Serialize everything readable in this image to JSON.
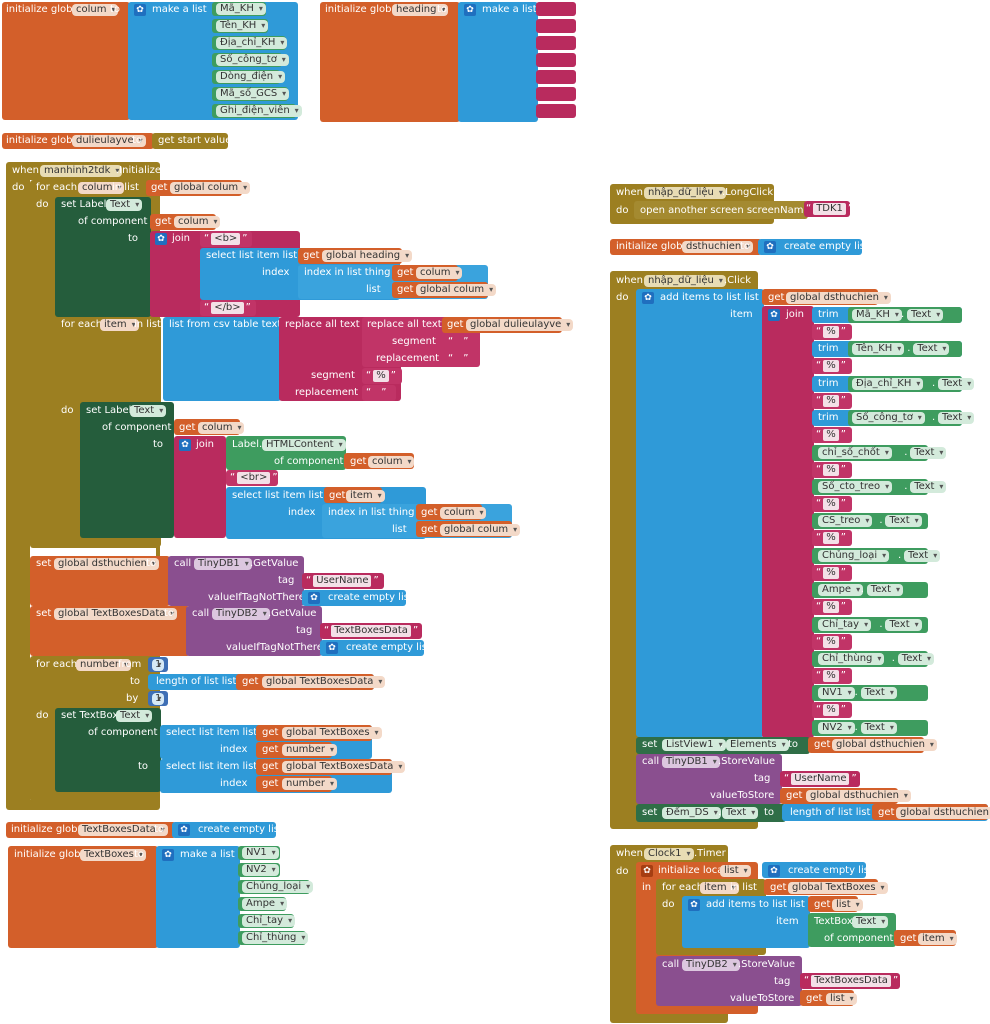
{
  "blocks": {
    "colum": {
      "init": "initialize global",
      "var": "colum",
      "to": "to",
      "make": "make a list",
      "items": [
        "Mã_KH",
        "Tên_KH",
        "Địa_chỉ_KH",
        "Số_công_tơ",
        "Dòng_điện",
        "Mã_số_GCS",
        "Ghi_điện_viên"
      ]
    },
    "heading": {
      "init": "initialize global",
      "var": "heading",
      "to": "to",
      "make": "make a list"
    },
    "dulieu": {
      "init": "initialize global",
      "var": "dulieulayve",
      "to": "to",
      "value": "get start value"
    },
    "manhinh": {
      "when": "when",
      "comp": "manhinh2tdk",
      "event": ".Initialize",
      "do": "do",
      "foreach": "for each",
      "var": "colum",
      "inlist": "in list",
      "get": "get",
      "gcol": "global colum",
      "setlabel": "set Label.",
      "prop": "Text",
      "ofcomp": "of component",
      "to": "to",
      "join": "join",
      "b_open": "<b>",
      "b_close": "</b>",
      "select": "select list item  list",
      "gheading": "global heading",
      "index": "index",
      "indexin": "index in list  thing",
      "list": "list",
      "foreach2": "for each",
      "item": "item",
      "fromcsv": "list from csv table  text",
      "replace": "replace all text",
      "gdulieu": "global dulieulayve",
      "segment": "segment",
      "replacement": "replacement",
      "pct": "%",
      "setlabel2": "set Label.",
      "htmlc": "Label.",
      "htmlprop": "HTMLContent",
      "br": "<br>",
      "set": "set",
      "gds": "global dsthuchien",
      "call": "call",
      "tiny1": "TinyDB1",
      "getvalue": ".GetValue",
      "tag": "tag",
      "username": "UserName",
      "valueif": "valueIfTagNotThere",
      "empty": "create empty list",
      "gtbd": "global TextBoxesData",
      "tiny2": "TinyDB2",
      "tbd": "TextBoxesData",
      "fornum": "for each",
      "number": "number",
      "from": "from",
      "one": "1",
      "to2": "to",
      "lengthof": "length of list  list",
      "by": "by",
      "settb": "set TextBox.",
      "selectitem": "select list item  list",
      "gtb": "global TextBoxes"
    },
    "tbdInit": {
      "init": "initialize global",
      "var": "TextBoxesData",
      "to": "to",
      "empty": "create empty list"
    },
    "tbInit": {
      "init": "initialize global",
      "var": "TextBoxes",
      "to": "to",
      "make": "make a list",
      "items": [
        "NV1",
        "NV2",
        "Chủng_loại",
        "Ampe",
        "Chỉ_tay",
        "Chỉ_thùng"
      ]
    },
    "longclick": {
      "when": "when",
      "comp": "nhập_dữ_liệu",
      "event": ".LongClick",
      "do": "do",
      "open": "open another screen  screenName",
      "screen": "TDK1"
    },
    "dsInit": {
      "init": "initialize global",
      "var": "dsthuchien",
      "to": "to",
      "empty": "create empty list"
    },
    "click": {
      "when": "when",
      "comp": "nhập_dữ_liệu",
      "event": ".Click",
      "do": "do",
      "add": "add items to list  list",
      "get": "get",
      "gds": "global dsthuchien",
      "item": "item",
      "join": "join",
      "trim": "trim",
      "text": "Text",
      "pct": "%",
      "fields": [
        "Mã_KH",
        "Tên_KH",
        "Địa_chỉ_KH",
        "Số_công_tơ",
        "chỉ_số_chốt",
        "Số_cto_treo",
        "CS_treo",
        "Chủng_loại",
        "Ampe",
        "Chỉ_tay",
        "Chỉ_thùng",
        "NV1",
        "NV2"
      ],
      "set": "set",
      "lv": "ListView1",
      "elements": "Elements",
      "to": "to",
      "call": "call",
      "tiny": "TinyDB1",
      "store": ".StoreValue",
      "tag": "tag",
      "username": "UserName",
      "vts": "valueToStore",
      "dem": "Đếm_DS",
      "length": "length of list  list"
    },
    "timer": {
      "when": "when",
      "comp": "Clock1",
      "event": ".Timer",
      "do": "do",
      "initlocal": "initialize local",
      "lvar": "list",
      "to": "to",
      "empty": "create empty list",
      "in": "in",
      "foreach": "for each",
      "item": "item",
      "inlist": "in list",
      "get": "get",
      "gtb": "global TextBoxes",
      "add": "add items to list  list",
      "list": "list",
      "tb": "TextBox.",
      "text": "Text",
      "ofcomp": "of component",
      "call": "call",
      "tiny": "TinyDB2",
      "store": ".StoreValue",
      "tag": "tag",
      "tbd": "TextBoxesData",
      "vts": "valueToStore"
    }
  }
}
